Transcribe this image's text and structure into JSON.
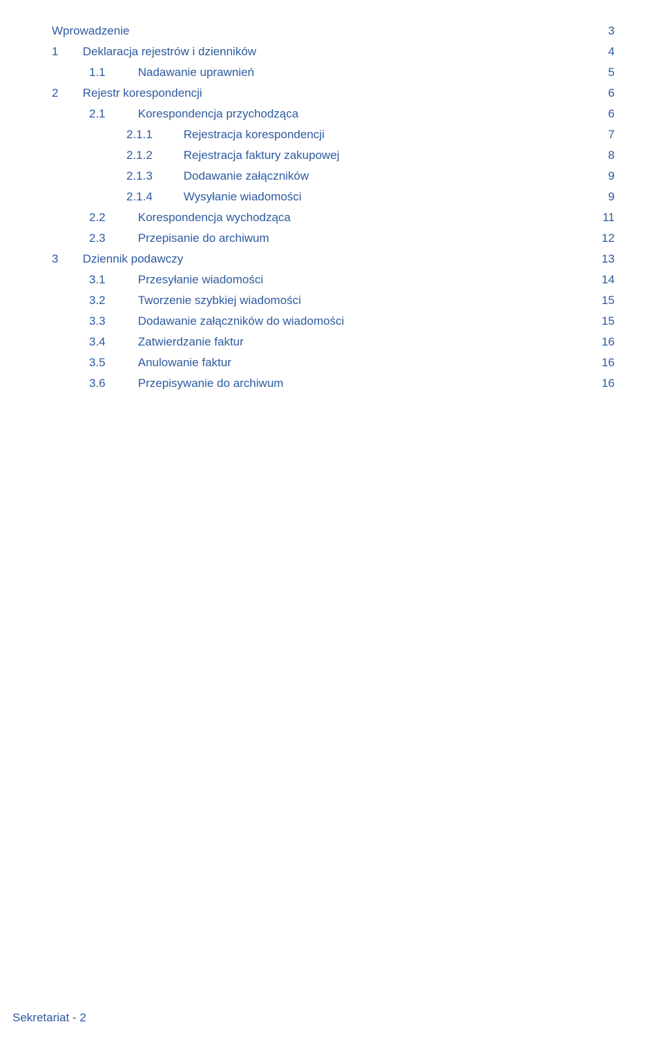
{
  "colors": {
    "text": "#2e5aa0",
    "dots": "#2e5aa0",
    "background": "#ffffff"
  },
  "typography": {
    "font_family": "Verdana",
    "font_size_pt": 13
  },
  "toc": [
    {
      "indent": 0,
      "num": "",
      "label": "Wprowadzenie",
      "page": "3"
    },
    {
      "indent": 1,
      "num": "1",
      "label": "Deklaracja  rejestrów i dzienników",
      "page": "4"
    },
    {
      "indent": 2,
      "num": "1.1",
      "label": "Nadawanie uprawnień",
      "page": "5"
    },
    {
      "indent": 1,
      "num": "2",
      "label": "Rejestr korespondencji",
      "page": "6"
    },
    {
      "indent": 2,
      "num": "2.1",
      "label": "Korespondencja przychodząca",
      "page": "6"
    },
    {
      "indent": 3,
      "num": "2.1.1",
      "label": "Rejestracja korespondencji",
      "page": "7"
    },
    {
      "indent": 3,
      "num": "2.1.2",
      "label": "Rejestracja faktury zakupowej",
      "page": "8"
    },
    {
      "indent": 3,
      "num": "2.1.3",
      "label": "Dodawanie załączników",
      "page": "9"
    },
    {
      "indent": 3,
      "num": "2.1.4",
      "label": "Wysyłanie wiadomości",
      "page": "9"
    },
    {
      "indent": 2,
      "num": "2.2",
      "label": "Korespondencja wychodząca",
      "page": "11"
    },
    {
      "indent": 2,
      "num": "2.3",
      "label": "Przepisanie do archiwum",
      "page": "12"
    },
    {
      "indent": 1,
      "num": "3",
      "label": "Dziennik podawczy",
      "page": "13"
    },
    {
      "indent": 2,
      "num": "3.1",
      "label": "Przesyłanie wiadomości",
      "page": "14"
    },
    {
      "indent": 2,
      "num": "3.2",
      "label": "Tworzenie  szybkiej wiadomości",
      "page": "15"
    },
    {
      "indent": 2,
      "num": "3.3",
      "label": "Dodawanie załączników do wiadomości",
      "page": "15"
    },
    {
      "indent": 2,
      "num": "3.4",
      "label": "Zatwierdzanie faktur",
      "page": "16"
    },
    {
      "indent": 2,
      "num": "3.5",
      "label": "Anulowanie faktur",
      "page": "16"
    },
    {
      "indent": 2,
      "num": "3.6",
      "label": "Przepisywanie do archiwum",
      "page": "16"
    }
  ],
  "footer": {
    "text": "Sekretariat - ",
    "page": "2"
  }
}
